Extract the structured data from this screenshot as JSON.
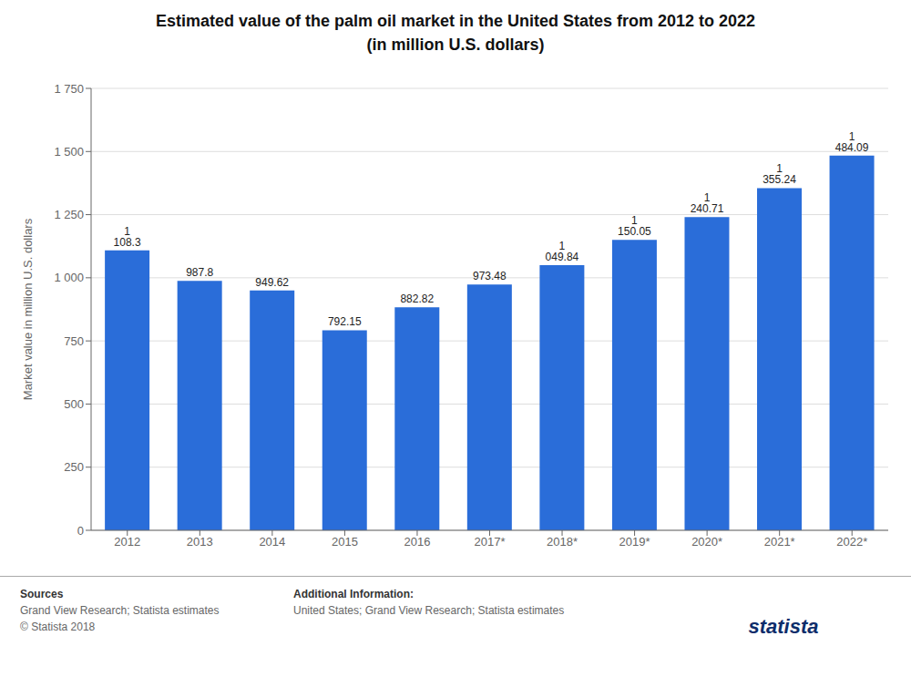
{
  "chart_data": {
    "type": "bar",
    "title": "Estimated value of the palm oil market in the United States from 2012 to 2022",
    "subtitle": "(in million U.S. dollars)",
    "categories": [
      "2012",
      "2013",
      "2014",
      "2015",
      "2016",
      "2017*",
      "2018*",
      "2019*",
      "2020*",
      "2021*",
      "2022*"
    ],
    "values": [
      1108.3,
      987.8,
      949.62,
      792.15,
      882.82,
      973.48,
      1049.84,
      1150.05,
      1240.71,
      1355.24,
      1484.09
    ],
    "value_labels": [
      "1 108.3",
      "987.8",
      "949.62",
      "792.15",
      "882.82",
      "973.48",
      "1 049.84",
      "1 150.05",
      "1 240.71",
      "1 355.24",
      "1 484.09"
    ],
    "data_labels": true,
    "color": "#2a6dd9",
    "ylabel": "Market value in million U.S. dollars",
    "ylim": [
      0,
      1750
    ],
    "yticks": [
      0,
      250,
      500,
      750,
      {
        "value": 1000,
        "label": "1 000"
      },
      {
        "value": 1250,
        "label": "1 250"
      },
      {
        "value": 1500,
        "label": "1 500"
      },
      {
        "value": 1750,
        "label": "1 750"
      }
    ],
    "grid": true,
    "annotations": [
      "Sources",
      "Grand View Research; Statista estimates\n© Statista 2018",
      "Additional Information:",
      "United States; Grand View Research; Statista estimates",
      "statista"
    ]
  }
}
